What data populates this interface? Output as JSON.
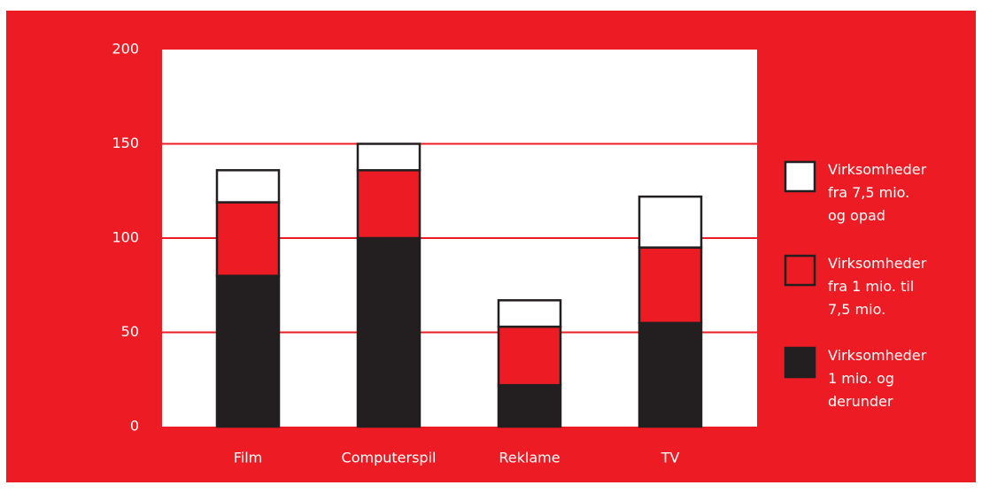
{
  "chart_data": {
    "type": "stacked_bar",
    "categories": [
      "Film",
      "Computerspil",
      "Reklame",
      "TV"
    ],
    "series": [
      {
        "name": "Virksomheder\n1 mio. og\nderunder",
        "color": "#231f20",
        "values": [
          80,
          100,
          22,
          55
        ]
      },
      {
        "name": "Virksomheder\nfra 1 mio. til\n7,5 mio.",
        "color": "#ed1c24",
        "values": [
          39,
          36,
          31,
          40
        ]
      },
      {
        "name": "Virksomheder\nfra 7,5 mio.\nog opad",
        "color": "#ffffff",
        "values": [
          17,
          14,
          14,
          27
        ]
      }
    ],
    "ylim": [
      0,
      200
    ],
    "yticks": [
      0,
      50,
      100,
      150,
      200
    ],
    "grid": true,
    "legend": "right"
  }
}
